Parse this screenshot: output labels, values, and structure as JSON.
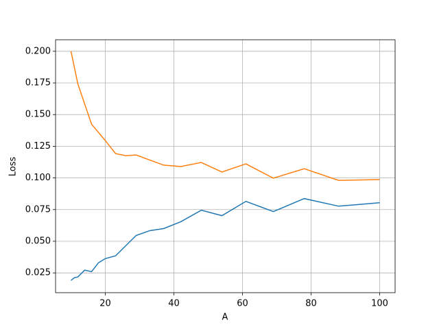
{
  "chart_data": {
    "type": "line",
    "xlabel": "A",
    "ylabel": "Loss",
    "xlim": [
      5.5,
      104.5
    ],
    "ylim": [
      0.0094,
      0.2091
    ],
    "xticks": [
      20,
      40,
      60,
      80,
      100
    ],
    "yticks": [
      0.025,
      {
        "value": 0.05,
        "label": "0.050"
      },
      0.075,
      {
        "value": 0.1,
        "label": "0.100"
      },
      0.125,
      {
        "value": 0.15,
        "label": "0.150"
      },
      0.175,
      {
        "value": 0.2,
        "label": "0.200"
      }
    ],
    "grid": true,
    "series": [
      {
        "color": "#1f77b4",
        "x": [
          10,
          11,
          12,
          14,
          16,
          18,
          20,
          23,
          29,
          33,
          37,
          42,
          48,
          54,
          61,
          69,
          78,
          88,
          100
        ],
        "values": [
          0.0191,
          0.0212,
          0.0218,
          0.0272,
          0.026,
          0.033,
          0.0363,
          0.0385,
          0.0546,
          0.0584,
          0.06,
          0.0654,
          0.0745,
          0.0702,
          0.0815,
          0.0734,
          0.0837,
          0.0777,
          0.0804
        ]
      },
      {
        "color": "#ff7f0e",
        "x": [
          10,
          12,
          16,
          20,
          23,
          26,
          29,
          37,
          42,
          48,
          54,
          61,
          69,
          78,
          88,
          100
        ],
        "values": [
          0.2,
          0.1742,
          0.1424,
          0.1295,
          0.1192,
          0.1176,
          0.1181,
          0.1101,
          0.109,
          0.1122,
          0.1047,
          0.1111,
          0.0998,
          0.1073,
          0.0981,
          0.0987
        ]
      }
    ]
  }
}
